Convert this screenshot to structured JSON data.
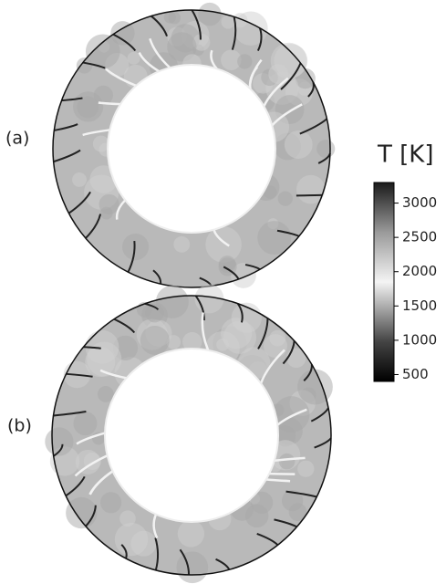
{
  "panels": [
    {
      "label": "(a)"
    },
    {
      "label": "(b)"
    }
  ],
  "colorbar": {
    "title": "T [K]",
    "range": [
      400,
      3300
    ],
    "ticks": [
      500,
      1000,
      1500,
      2000,
      2500,
      3000
    ]
  }
}
